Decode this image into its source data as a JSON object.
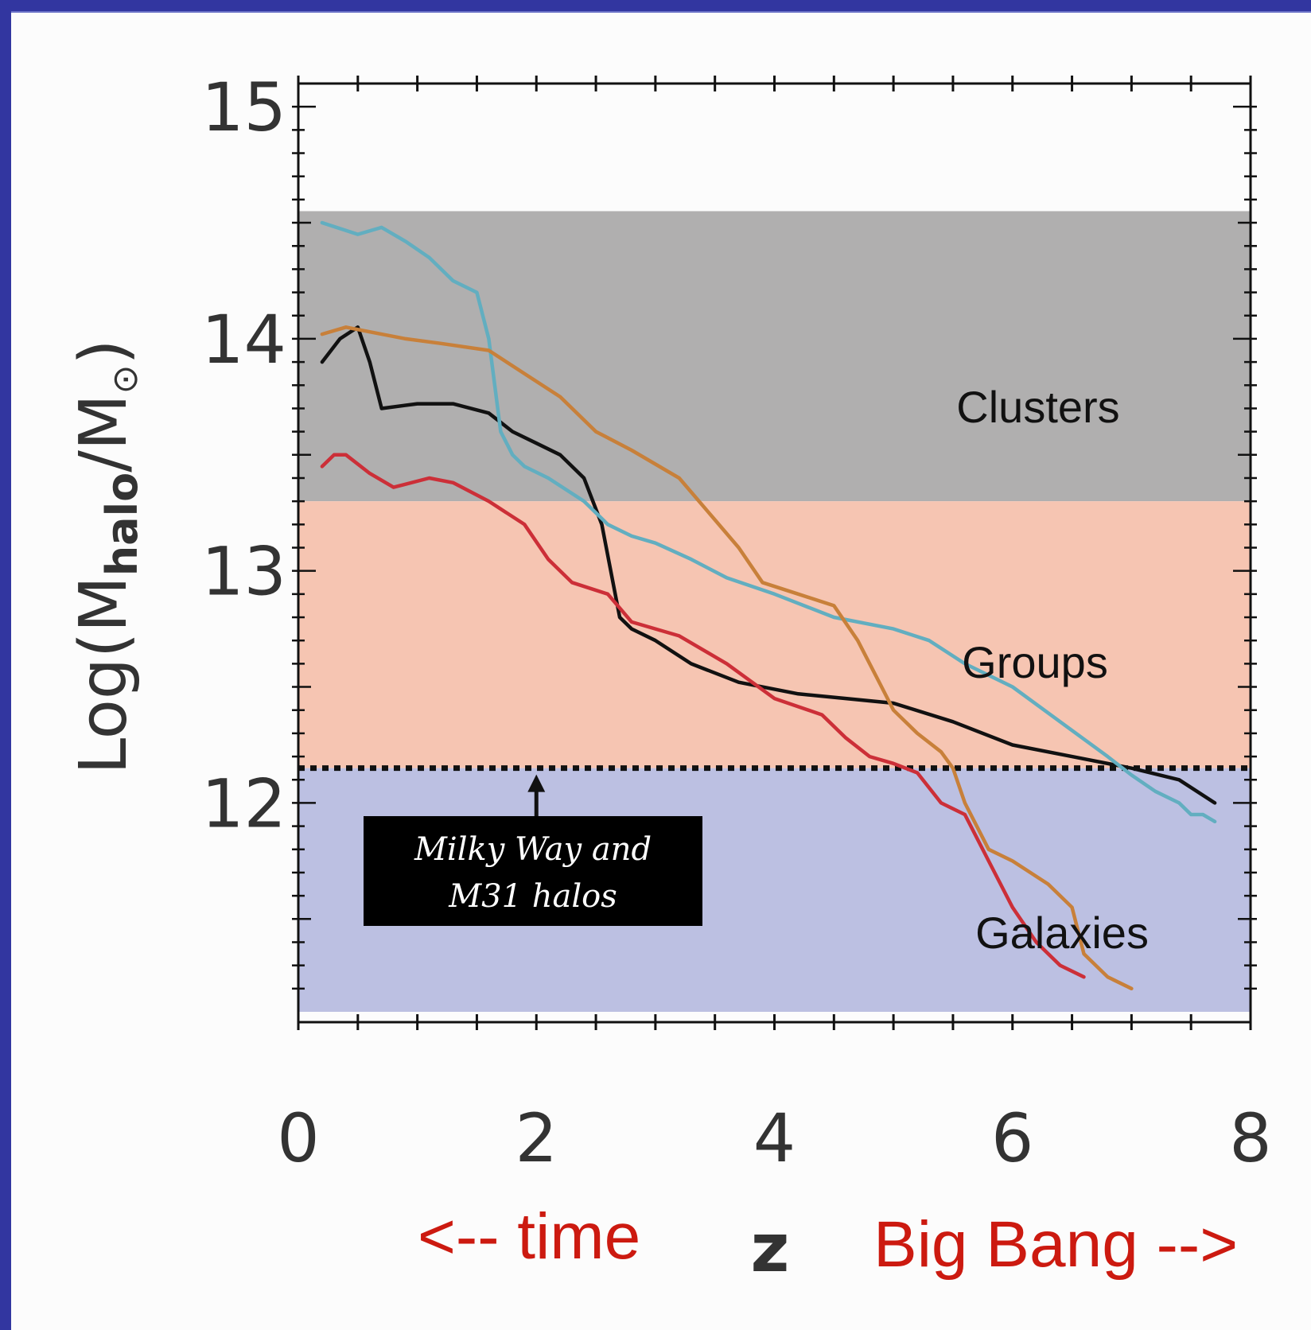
{
  "chart_data": {
    "type": "line",
    "title": "",
    "xlabel": "z",
    "ylabel_prefix": "Log(M",
    "ylabel_sub": "halo",
    "ylabel_mid": "/M",
    "ylabel_sun": "⊙",
    "ylabel_suffix": ")",
    "xlim": [
      0,
      8
    ],
    "ylim": [
      11.1,
      15.1
    ],
    "x_ticks": [
      "0",
      "2",
      "4",
      "6",
      "8"
    ],
    "y_ticks": [
      "12",
      "13",
      "14",
      "15"
    ],
    "grid": false,
    "regions": [
      {
        "label": "Clusters",
        "from": 13.3,
        "to": 14.55,
        "color": "#b0afaf"
      },
      {
        "label": "Groups",
        "from": 12.15,
        "to": 13.3,
        "color": "#f6c5b2"
      },
      {
        "label": "Galaxies",
        "from": 11.1,
        "to": 12.15,
        "color": "#bcc0e2"
      }
    ],
    "reference_line": {
      "y": 12.15,
      "style": "dotted",
      "color": "#111111"
    },
    "annotation": {
      "line1": "Milky Way and",
      "line2": "M31 halos",
      "x": 2.0
    },
    "bottom_notes": {
      "left": "<-- time",
      "right": "Big Bang  -->",
      "color": "#cc1a10"
    },
    "series": [
      {
        "color": "#111111",
        "x": [
          0.2,
          0.35,
          0.5,
          0.6,
          0.7,
          1.0,
          1.3,
          1.6,
          1.8,
          2.0,
          2.2,
          2.4,
          2.55,
          2.7,
          2.8,
          3.0,
          3.3,
          3.7,
          4.2,
          4.6,
          5.0,
          5.5,
          6.0,
          6.5,
          7.0,
          7.4,
          7.7
        ],
        "values": [
          13.9,
          14.0,
          14.05,
          13.9,
          13.7,
          13.72,
          13.72,
          13.68,
          13.6,
          13.55,
          13.5,
          13.4,
          13.2,
          12.8,
          12.75,
          12.7,
          12.6,
          12.52,
          12.47,
          12.45,
          12.43,
          12.35,
          12.25,
          12.2,
          12.15,
          12.1,
          12.0
        ]
      },
      {
        "color": "#62aec0",
        "x": [
          0.2,
          0.5,
          0.7,
          0.9,
          1.1,
          1.3,
          1.5,
          1.6,
          1.7,
          1.8,
          1.9,
          2.1,
          2.4,
          2.6,
          2.8,
          3.0,
          3.3,
          3.6,
          4.0,
          4.5,
          5.0,
          5.3,
          5.6,
          6.0,
          6.4,
          6.8,
          7.0,
          7.2,
          7.4,
          7.5,
          7.6,
          7.7
        ],
        "values": [
          14.5,
          14.45,
          14.48,
          14.42,
          14.35,
          14.25,
          14.2,
          14.0,
          13.6,
          13.5,
          13.45,
          13.4,
          13.3,
          13.2,
          13.15,
          13.12,
          13.05,
          12.97,
          12.9,
          12.8,
          12.75,
          12.7,
          12.6,
          12.5,
          12.35,
          12.2,
          12.12,
          12.05,
          12.0,
          11.95,
          11.95,
          11.92
        ]
      },
      {
        "color": "#c8803a",
        "x": [
          0.2,
          0.4,
          0.6,
          0.9,
          1.2,
          1.6,
          1.9,
          2.2,
          2.5,
          2.8,
          3.2,
          3.5,
          3.7,
          3.9,
          4.2,
          4.5,
          4.7,
          4.9,
          5.0,
          5.2,
          5.4,
          5.5,
          5.6,
          5.8,
          6.0,
          6.3,
          6.5,
          6.6,
          6.8,
          7.0
        ],
        "values": [
          14.02,
          14.05,
          14.03,
          14.0,
          13.98,
          13.95,
          13.85,
          13.75,
          13.6,
          13.52,
          13.4,
          13.22,
          13.1,
          12.95,
          12.9,
          12.85,
          12.7,
          12.5,
          12.4,
          12.3,
          12.22,
          12.15,
          12.0,
          11.8,
          11.75,
          11.65,
          11.55,
          11.35,
          11.25,
          11.2
        ]
      },
      {
        "color": "#cc2f38",
        "x": [
          0.2,
          0.3,
          0.4,
          0.6,
          0.8,
          1.1,
          1.3,
          1.6,
          1.9,
          2.1,
          2.3,
          2.6,
          2.8,
          3.2,
          3.6,
          4.0,
          4.4,
          4.6,
          4.8,
          5.0,
          5.2,
          5.4,
          5.6,
          5.8,
          6.0,
          6.2,
          6.4,
          6.6
        ],
        "values": [
          13.45,
          13.5,
          13.5,
          13.42,
          13.36,
          13.4,
          13.38,
          13.3,
          13.2,
          13.05,
          12.95,
          12.9,
          12.78,
          12.72,
          12.6,
          12.45,
          12.38,
          12.28,
          12.2,
          12.17,
          12.13,
          12.0,
          11.95,
          11.75,
          11.55,
          11.4,
          11.3,
          11.25
        ]
      }
    ]
  }
}
